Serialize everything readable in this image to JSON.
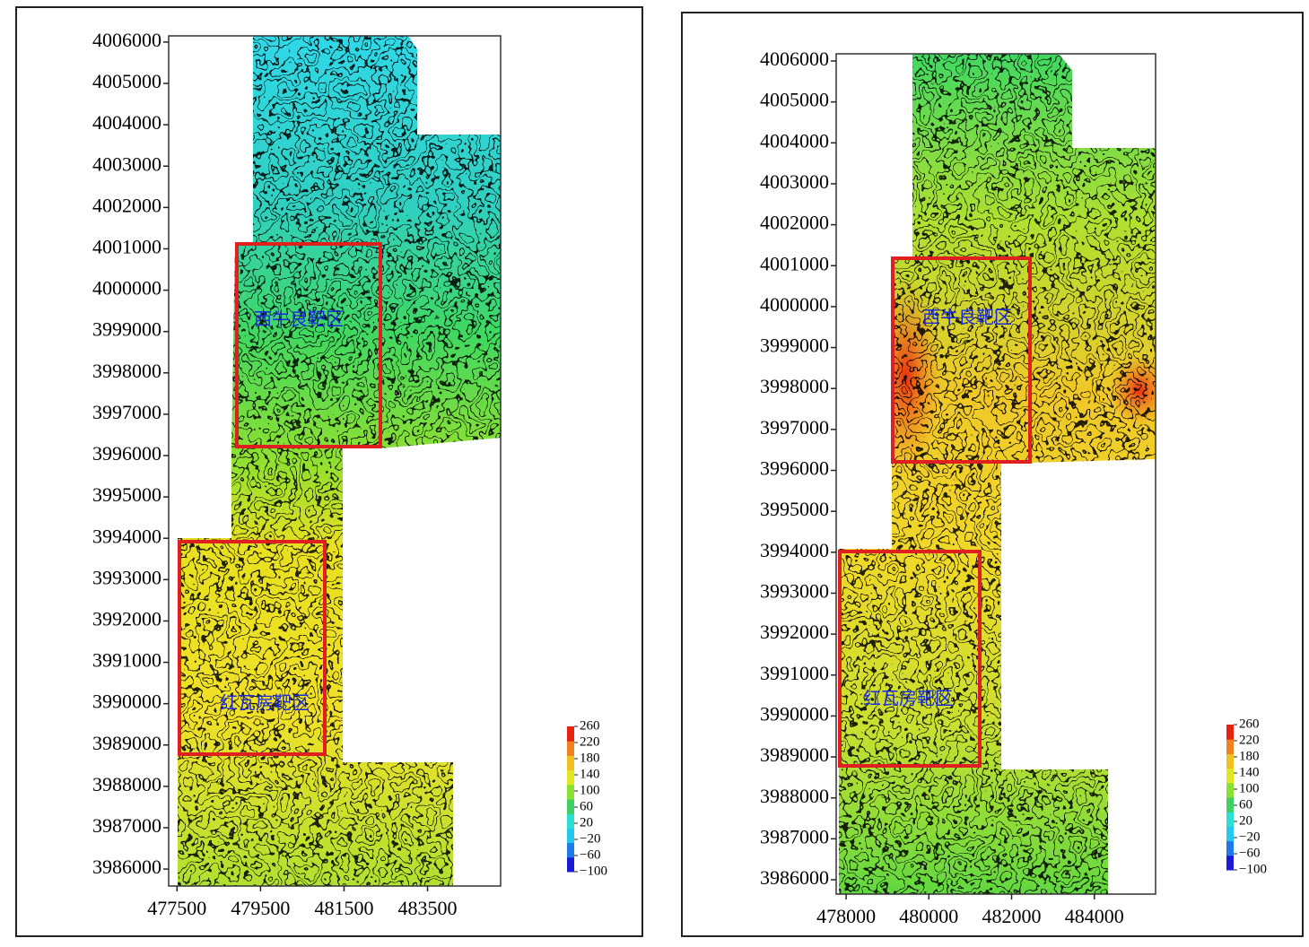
{
  "chart_data": [
    {
      "type": "contour",
      "annotations": [
        "西牛良靶区",
        "红瓦房靶区"
      ],
      "xlim": [
        477300,
        485250
      ],
      "xticks": [
        477500,
        479500,
        481500,
        483500
      ],
      "ylim": [
        3985590,
        4006150
      ],
      "yticks": [
        3986000,
        3987000,
        3988000,
        3989000,
        3990000,
        3991000,
        3992000,
        3993000,
        3994000,
        3995000,
        3996000,
        3997000,
        3998000,
        3999000,
        4000000,
        4001000,
        4002000,
        4003000,
        4004000,
        4005000,
        4006000
      ],
      "colorbar": {
        "lim": [
          -100,
          260
        ],
        "ticks": [
          260,
          220,
          180,
          140,
          100,
          60,
          {
            "value": 20,
            "label": "20"
          },
          {
            "value": -20,
            "label": "−20"
          },
          {
            "value": -60,
            "label": "−60"
          },
          {
            "value": -100,
            "label": "−100"
          }
        ],
        "colors": [
          "#1a1ad8",
          "#1e7ae8",
          "#22c8f0",
          "#2ae0d0",
          "#3ed060",
          "#8ae030",
          "#e0e820",
          "#f0c020",
          "#f08020",
          "#e82010"
        ]
      }
    },
    {
      "type": "contour",
      "annotations": [
        "西牛良靶区",
        "红瓦房靶区"
      ],
      "xlim": [
        477760,
        485480
      ],
      "xticks": [
        478000,
        480000,
        482000,
        484000
      ],
      "ylim": [
        3985650,
        4006175
      ],
      "yticks": [
        3986000,
        3987000,
        3988000,
        3989000,
        3990000,
        3991000,
        3992000,
        3993000,
        3994000,
        3995000,
        3996000,
        3997000,
        3998000,
        3999000,
        4000000,
        4001000,
        4002000,
        4003000,
        4004000,
        4005000,
        4006000
      ],
      "colorbar": {
        "lim": [
          -100,
          260
        ],
        "ticks": [
          260,
          220,
          180,
          140,
          100,
          60,
          {
            "value": 20,
            "label": "20"
          },
          {
            "value": -20,
            "label": "−20"
          },
          {
            "value": -60,
            "label": "−60"
          },
          {
            "value": -100,
            "label": "−100"
          }
        ],
        "colors": [
          "#1a1ad8",
          "#1e7ae8",
          "#22c8f0",
          "#2ae0d0",
          "#3ed060",
          "#8ae030",
          "#e0e820",
          "#f0c020",
          "#f08020",
          "#e82010"
        ]
      }
    }
  ]
}
